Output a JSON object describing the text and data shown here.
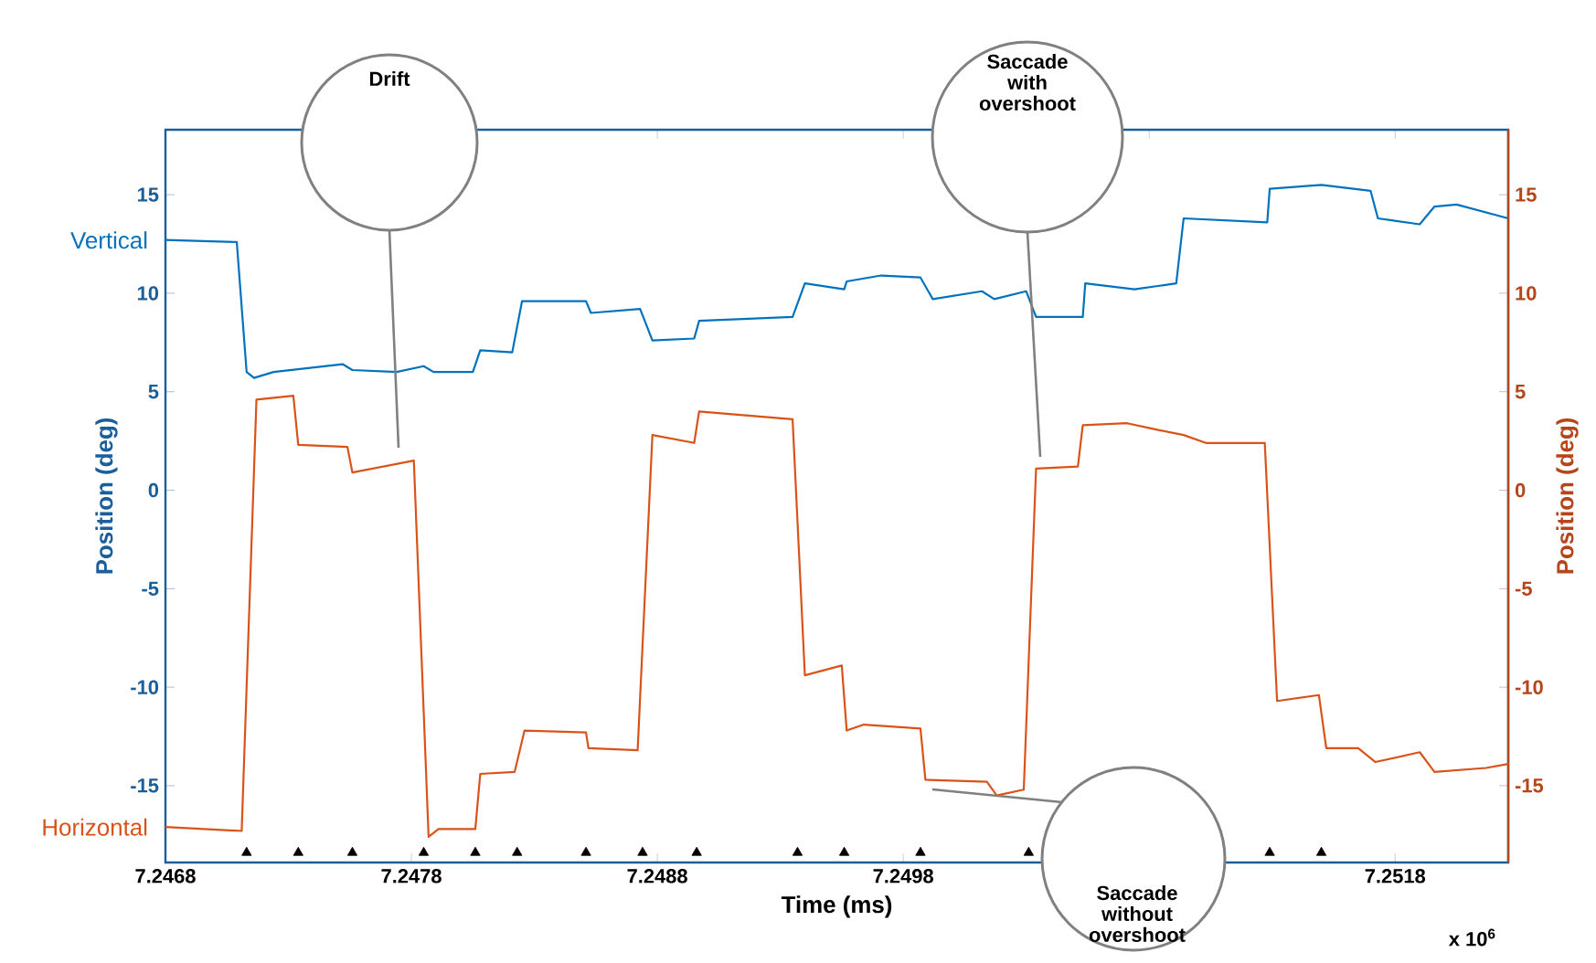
{
  "chart_data": {
    "type": "line",
    "xlabel": "Time (ms)",
    "ylabel": "Position (deg)",
    "y2label": "Position (deg)",
    "xlim": [
      7.2468,
      7.25226
    ],
    "ylim": [
      -18.9,
      18.3
    ],
    "y2lim": [
      -18.9,
      18.3
    ],
    "xticks": [
      7.2468,
      7.2478,
      7.2488,
      7.2498,
      {
        "value": 7.2508,
        "label": null
      },
      7.2518
    ],
    "yticks": [
      -15,
      -10,
      -5,
      0,
      5,
      10,
      15
    ],
    "y2ticks": [
      -15,
      -10,
      -5,
      0,
      5,
      10,
      15
    ],
    "series": [
      {
        "name": "Vertical",
        "color": "#0072bd",
        "x": [
          7.2468,
          7.24709,
          7.24713,
          7.24716,
          7.24724,
          7.24752,
          7.24756,
          7.24774,
          7.24785,
          7.24789,
          7.24805,
          7.24808,
          7.24821,
          7.24825,
          7.24851,
          7.24853,
          7.24873,
          7.24878,
          7.24895,
          7.24897,
          7.24935,
          7.2494,
          7.24956,
          7.24957,
          7.24971,
          7.24987,
          7.24992,
          7.25012,
          7.25017,
          7.2503,
          7.25034,
          7.25053,
          7.25054,
          7.25074,
          7.25091,
          7.25094,
          7.25128,
          7.25129,
          7.2515,
          7.2517,
          7.25173,
          7.2519,
          7.25196,
          7.25205,
          7.25226
        ],
        "values": [
          12.7,
          12.6,
          6.0,
          5.7,
          6.0,
          6.4,
          6.1,
          6.0,
          6.3,
          6.0,
          6.0,
          7.1,
          7.0,
          9.6,
          9.6,
          9.0,
          9.2,
          7.6,
          7.7,
          8.6,
          8.8,
          10.5,
          10.2,
          10.6,
          10.9,
          10.8,
          9.7,
          10.1,
          9.7,
          10.1,
          8.8,
          8.8,
          10.5,
          10.2,
          10.5,
          13.8,
          13.6,
          15.3,
          15.5,
          15.2,
          13.8,
          13.5,
          14.4,
          14.5,
          13.8
        ]
      },
      {
        "name": "Horizontal",
        "color": "#d95319",
        "axis": "y2",
        "x": [
          7.2468,
          7.24711,
          7.24717,
          7.24732,
          7.24734,
          7.24754,
          7.24756,
          7.24781,
          7.24787,
          7.24791,
          7.24806,
          7.24808,
          7.24822,
          7.24826,
          7.24851,
          7.24852,
          7.24872,
          7.24878,
          7.24895,
          7.24897,
          7.24935,
          7.2494,
          7.24955,
          7.24957,
          7.24964,
          7.24987,
          7.24989,
          7.25014,
          7.25018,
          7.25029,
          7.25034,
          7.25051,
          7.25053,
          7.25071,
          7.25082,
          7.25094,
          7.25103,
          7.25127,
          7.25132,
          7.25149,
          7.25152,
          7.25165,
          7.25172,
          7.2519,
          7.25196,
          7.25217,
          7.25226
        ],
        "values": [
          -17.1,
          -17.3,
          4.6,
          4.8,
          2.3,
          2.2,
          0.9,
          1.5,
          -17.6,
          -17.2,
          -17.2,
          -14.4,
          -14.3,
          -12.2,
          -12.3,
          -13.1,
          -13.2,
          2.8,
          2.4,
          4.0,
          3.6,
          -9.4,
          -8.9,
          -12.2,
          -11.9,
          -12.1,
          -14.7,
          -14.8,
          -15.5,
          -15.2,
          1.1,
          1.2,
          3.3,
          3.4,
          3.1,
          2.8,
          2.4,
          2.4,
          -10.7,
          -10.4,
          -13.1,
          -13.1,
          -13.8,
          -13.3,
          -14.3,
          -14.1,
          -13.9
        ]
      },
      {
        "type": "scatter",
        "color": "#000000",
        "marker": "triangle",
        "x": [
          7.24713,
          7.24734,
          7.24756,
          7.24785,
          7.24806,
          7.24823,
          7.24851,
          7.24874,
          7.24896,
          7.24937,
          7.24956,
          7.24987,
          7.25031,
          7.25129,
          7.2515
        ],
        "values": [
          -18.4,
          -18.4,
          -18.4,
          -18.4,
          -18.4,
          -18.4,
          -18.4,
          -18.4,
          -18.4,
          -18.4,
          -18.4,
          -18.4,
          -18.4,
          -18.4,
          -18.4
        ]
      }
    ],
    "annotations": [
      "Drift",
      "Saccade with overshoot",
      "Saccade without overshoot",
      "x 10$^{6}$"
    ]
  }
}
